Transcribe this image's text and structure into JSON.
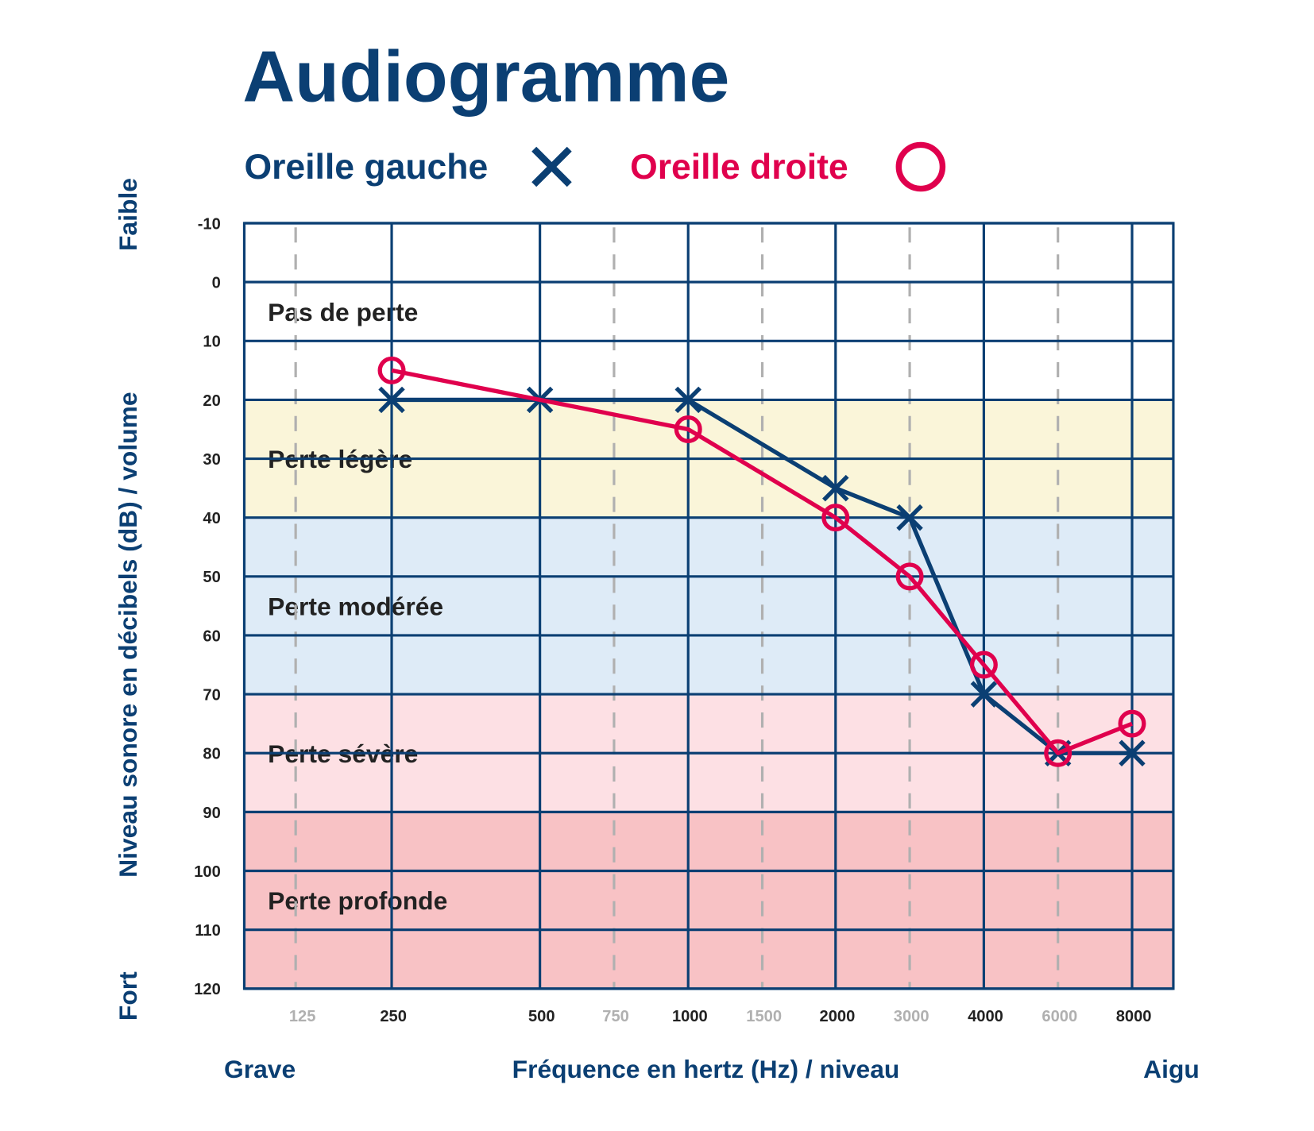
{
  "chart_data": {
    "type": "line",
    "title": "Audiogramme",
    "xlabel": "Fréquence en hertz (Hz) / niveau",
    "ylabel": "Niveau sonore en décibels (dB) / volume",
    "x_left_label": "Grave",
    "x_right_label": "Aigu",
    "y_top_label": "Faible",
    "y_bottom_label": "Fort",
    "x_ticks": [
      {
        "label": "125",
        "major": false
      },
      {
        "label": "250",
        "major": true
      },
      {
        "label": "500",
        "major": true
      },
      {
        "label": "750",
        "major": false
      },
      {
        "label": "1000",
        "major": true
      },
      {
        "label": "1500",
        "major": false
      },
      {
        "label": "2000",
        "major": true
      },
      {
        "label": "3000",
        "major": false
      },
      {
        "label": "4000",
        "major": true
      },
      {
        "label": "6000",
        "major": false
      },
      {
        "label": "8000",
        "major": true
      }
    ],
    "y_ticks": [
      "-10",
      "0",
      "10",
      "20",
      "30",
      "40",
      "50",
      "60",
      "70",
      "80",
      "90",
      "100",
      "110",
      "120"
    ],
    "ylim": [
      -10,
      120
    ],
    "y_inverted": true,
    "grid": true,
    "legend_position": "top",
    "bands": [
      {
        "label": "Pas de perte",
        "from": -10,
        "to": 20,
        "color": "#ffffff"
      },
      {
        "label": "Perte légère",
        "from": 20,
        "to": 40,
        "color": "#faf5d9"
      },
      {
        "label": "Perte modérée",
        "from": 40,
        "to": 70,
        "color": "#deebf7"
      },
      {
        "label": "Perte sévère",
        "from": 70,
        "to": 90,
        "color": "#fde0e4"
      },
      {
        "label": "Perte profonde",
        "from": 90,
        "to": 120,
        "color": "#f8c2c5"
      }
    ],
    "series": [
      {
        "name": "Oreille gauche",
        "marker": "x",
        "color": "#0b3f73",
        "x": [
          "250",
          "500",
          "1000",
          "2000",
          "3000",
          "4000",
          "6000",
          "8000"
        ],
        "values": [
          20,
          20,
          20,
          35,
          40,
          70,
          80,
          80
        ]
      },
      {
        "name": "Oreille droite",
        "marker": "circle",
        "color": "#e0004d",
        "x": [
          "250",
          "1000",
          "2000",
          "3000",
          "4000",
          "6000",
          "8000"
        ],
        "values": [
          15,
          25,
          40,
          50,
          65,
          80,
          75
        ]
      }
    ]
  }
}
